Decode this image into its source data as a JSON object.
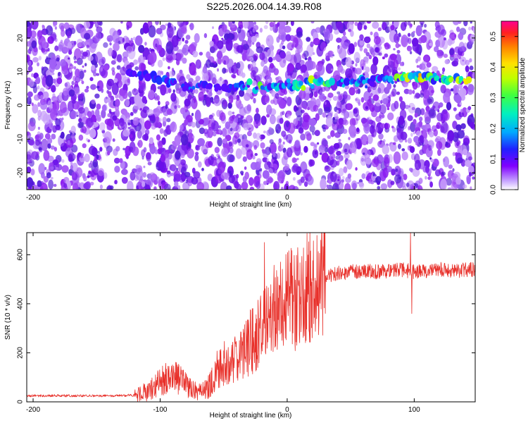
{
  "title": "S225.2026.004.14.39.R08",
  "chart_data": [
    {
      "type": "heatmap",
      "xlabel": "Height of straight line (km)",
      "ylabel": "Frequency (Hz)",
      "xlim": [
        -205,
        148
      ],
      "ylim": [
        -25,
        25
      ],
      "xticks": [
        -200,
        -100,
        0,
        100
      ],
      "yticks": [
        -20,
        -10,
        0,
        10,
        20
      ],
      "xtick_labels": [
        "-200",
        "-100",
        "0",
        "100"
      ],
      "ytick_labels": [
        "-20",
        "-10",
        "0",
        "10",
        "20"
      ],
      "colorbar": {
        "label": "Normalized spectral amplitude",
        "range": [
          0,
          0.55
        ],
        "ticks": [
          0.0,
          0.1,
          0.2,
          0.3,
          0.4,
          0.5
        ],
        "tick_labels": [
          "0.0",
          "0.1",
          "0.2",
          "0.3",
          "0.4",
          "0.5"
        ],
        "colormap": [
          "#ffffff",
          "#8000ff",
          "#0000ff",
          "#00c0ff",
          "#00ff80",
          "#c0ff00",
          "#ffff00",
          "#ff8000",
          "#ff0000",
          "#ff0080"
        ]
      },
      "signal_track": {
        "x": [
          -125,
          -110,
          -100,
          -80,
          -60,
          -40,
          -20,
          0,
          20,
          40,
          60,
          80,
          100,
          120,
          145
        ],
        "frequency": [
          9.5,
          9.0,
          8.0,
          5.5,
          5.5,
          5.5,
          5.5,
          6.0,
          6.5,
          6.5,
          7.0,
          8.0,
          8.5,
          8.0,
          7.5
        ],
        "peak_amplitude": [
          0.12,
          0.14,
          0.15,
          0.18,
          0.12,
          0.15,
          0.32,
          0.2,
          0.42,
          0.22,
          0.2,
          0.26,
          0.45,
          0.28,
          0.45
        ]
      },
      "grid": false,
      "legend": "none"
    },
    {
      "type": "line",
      "xlabel": "Height of straight line (km)",
      "ylabel": "SNR (10 * v/v)",
      "xlim": [
        -205,
        148
      ],
      "ylim": [
        0,
        690
      ],
      "xticks": [
        -200,
        -100,
        0,
        100
      ],
      "yticks": [
        0,
        200,
        400,
        600
      ],
      "xtick_labels": [
        "-200",
        "-100",
        "0",
        "100"
      ],
      "ytick_labels": [
        "0",
        "200",
        "400",
        "600"
      ],
      "color": "#e8302a",
      "series": [
        {
          "x": [
            -205,
            -190,
            -170,
            -150,
            -130,
            -120,
            -110,
            -100,
            -95,
            -90,
            -85,
            -80,
            -75,
            -70,
            -65,
            -60,
            -55,
            -50,
            -45,
            -40,
            -35,
            -30,
            -25,
            -20,
            -15,
            -10,
            -5,
            0,
            5,
            10,
            15,
            20,
            25,
            30,
            40,
            50,
            60,
            70,
            80,
            90,
            100,
            110,
            120,
            130,
            148
          ],
          "y": [
            20,
            20,
            20,
            20,
            20,
            22,
            45,
            80,
            95,
            110,
            90,
            70,
            45,
            40,
            45,
            75,
            130,
            160,
            170,
            180,
            190,
            240,
            260,
            290,
            330,
            370,
            390,
            410,
            420,
            430,
            460,
            480,
            505,
            515,
            525,
            530,
            535,
            530,
            535,
            540,
            530,
            535,
            540,
            535,
            540
          ]
        }
      ],
      "annotations": {
        "spike_x": [
          -18,
          97,
          98
        ],
        "spike_y": [
          650,
          690,
          360
        ]
      },
      "grid": false,
      "legend": "none"
    }
  ]
}
